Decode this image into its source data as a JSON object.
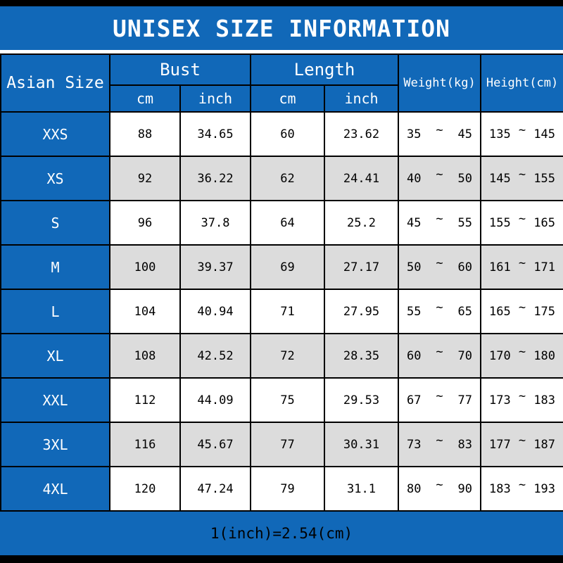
{
  "title": "UNISEX SIZE INFORMATION",
  "tilde": "~",
  "colors": {
    "header_blue": "#1168b8",
    "alt_row_gray": "#dcdcdc",
    "bar_black": "#000000",
    "header_text_white": "#ffffff",
    "body_text_black": "#000000"
  },
  "header": {
    "size_column": "Asian Size",
    "groups": [
      {
        "label": "Bust"
      },
      {
        "label": "Length"
      }
    ],
    "subheaders": [
      "cm",
      "inch",
      "cm",
      "inch"
    ],
    "weight_label": "Weight(kg)",
    "height_label": "Height(cm)"
  },
  "chart_data": {
    "type": "table",
    "title": "UNISEX SIZE INFORMATION",
    "columns": [
      "Asian Size",
      "Bust cm",
      "Bust inch",
      "Length cm",
      "Length inch",
      "Weight(kg)",
      "Height(cm)"
    ],
    "rows": [
      {
        "size": "XXS",
        "bust_cm": "88",
        "bust_inch": "34.65",
        "length_cm": "60",
        "length_inch": "23.62",
        "weight_lo": "35",
        "weight_hi": "45",
        "height_lo": "135",
        "height_hi": "145"
      },
      {
        "size": "XS",
        "bust_cm": "92",
        "bust_inch": "36.22",
        "length_cm": "62",
        "length_inch": "24.41",
        "weight_lo": "40",
        "weight_hi": "50",
        "height_lo": "145",
        "height_hi": "155"
      },
      {
        "size": "S",
        "bust_cm": "96",
        "bust_inch": "37.8",
        "length_cm": "64",
        "length_inch": "25.2",
        "weight_lo": "45",
        "weight_hi": "55",
        "height_lo": "155",
        "height_hi": "165"
      },
      {
        "size": "M",
        "bust_cm": "100",
        "bust_inch": "39.37",
        "length_cm": "69",
        "length_inch": "27.17",
        "weight_lo": "50",
        "weight_hi": "60",
        "height_lo": "161",
        "height_hi": "171"
      },
      {
        "size": "L",
        "bust_cm": "104",
        "bust_inch": "40.94",
        "length_cm": "71",
        "length_inch": "27.95",
        "weight_lo": "55",
        "weight_hi": "65",
        "height_lo": "165",
        "height_hi": "175"
      },
      {
        "size": "XL",
        "bust_cm": "108",
        "bust_inch": "42.52",
        "length_cm": "72",
        "length_inch": "28.35",
        "weight_lo": "60",
        "weight_hi": "70",
        "height_lo": "170",
        "height_hi": "180"
      },
      {
        "size": "XXL",
        "bust_cm": "112",
        "bust_inch": "44.09",
        "length_cm": "75",
        "length_inch": "29.53",
        "weight_lo": "67",
        "weight_hi": "77",
        "height_lo": "173",
        "height_hi": "183"
      },
      {
        "size": "3XL",
        "bust_cm": "116",
        "bust_inch": "45.67",
        "length_cm": "77",
        "length_inch": "30.31",
        "weight_lo": "73",
        "weight_hi": "83",
        "height_lo": "177",
        "height_hi": "187"
      },
      {
        "size": "4XL",
        "bust_cm": "120",
        "bust_inch": "47.24",
        "length_cm": "79",
        "length_inch": "31.1",
        "weight_lo": "80",
        "weight_hi": "90",
        "height_lo": "183",
        "height_hi": "193"
      }
    ],
    "footnote": "1(inch)=2.54(cm)"
  }
}
